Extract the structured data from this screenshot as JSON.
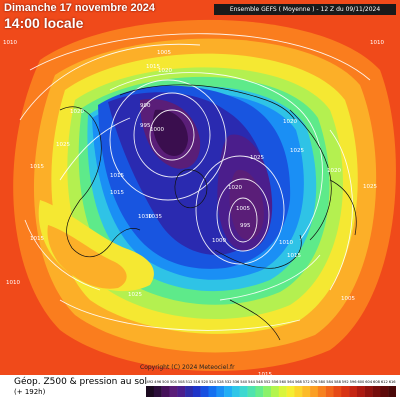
{
  "header": {
    "date": "Dimanche 17 novembre 2024",
    "time": "14:00 locale",
    "model_banner": "Ensemble GEFS  ( Moyenne )  -  12 Z du 09/11/2024"
  },
  "footer": {
    "title": "Géop. Z500 & pression au sol",
    "lead": "(+ 192h)",
    "copyright": "Copyright (C) 2024 Meteociel.fr"
  },
  "legend": {
    "ticks": [
      "492",
      "496",
      "500",
      "504",
      "508",
      "512",
      "516",
      "520",
      "524",
      "528",
      "532",
      "536",
      "540",
      "544",
      "548",
      "552",
      "556",
      "560",
      "564",
      "568",
      "572",
      "576",
      "580",
      "584",
      "588",
      "592",
      "596",
      "600",
      "604",
      "608",
      "612",
      "616"
    ],
    "colors": [
      "#1b0a1f",
      "#2c0e3a",
      "#46125a",
      "#5a1e78",
      "#4b1e8c",
      "#2f2ba8",
      "#1f34c8",
      "#1850e0",
      "#1470f0",
      "#1a8ff5",
      "#22aef5",
      "#30c6e8",
      "#3ed8d0",
      "#4fe3ae",
      "#66ec8c",
      "#8af26a",
      "#b3f54e",
      "#d9f53c",
      "#f5ee32",
      "#fbd52c",
      "#fcbb28",
      "#fb9f24",
      "#f7821f",
      "#f0651b",
      "#e64a17",
      "#d83414",
      "#c52512",
      "#ac1a10",
      "#90130e",
      "#760e0c",
      "#5e0a0a",
      "#4a0808"
    ]
  },
  "pressure_labels": [
    {
      "text": "1010",
      "id": "top-left"
    },
    {
      "text": "1010",
      "id": "top-right"
    },
    {
      "text": "1005",
      "id": "greenland-n"
    },
    {
      "text": "1015",
      "id": "alaska"
    },
    {
      "text": "1020",
      "id": "canada-n"
    },
    {
      "text": "990",
      "id": "low-w1"
    },
    {
      "text": "995",
      "id": "low-w2"
    },
    {
      "text": "1000",
      "id": "low-w3"
    },
    {
      "text": "1020",
      "id": "pacific-w"
    },
    {
      "text": "1015",
      "id": "bering-w"
    },
    {
      "text": "1015",
      "id": "west-mid"
    },
    {
      "text": "1025",
      "id": "asia-e"
    },
    {
      "text": "1030",
      "id": "pacific-n"
    },
    {
      "text": "1035",
      "id": "pacific-n2"
    },
    {
      "text": "1020",
      "id": "pole"
    },
    {
      "text": "1025",
      "id": "siberia"
    },
    {
      "text": "1005",
      "id": "low-e1"
    },
    {
      "text": "995",
      "id": "low-e2"
    },
    {
      "text": "1000",
      "id": "low-e3"
    },
    {
      "text": "1010",
      "id": "europe-e"
    },
    {
      "text": "1015",
      "id": "africa-n"
    },
    {
      "text": "1020",
      "id": "atl-n"
    },
    {
      "text": "1015",
      "id": "left-edge"
    },
    {
      "text": "1025",
      "id": "east-mid"
    },
    {
      "text": "1020",
      "id": "east-mid2"
    },
    {
      "text": "1025",
      "id": "right-mid"
    },
    {
      "text": "1015",
      "id": "left-low"
    },
    {
      "text": "1010",
      "id": "left-bottom"
    },
    {
      "text": "1025",
      "id": "bottom-mid"
    },
    {
      "text": "1005",
      "id": "bottom-e"
    },
    {
      "text": "1015",
      "id": "bottom-edge"
    }
  ]
}
